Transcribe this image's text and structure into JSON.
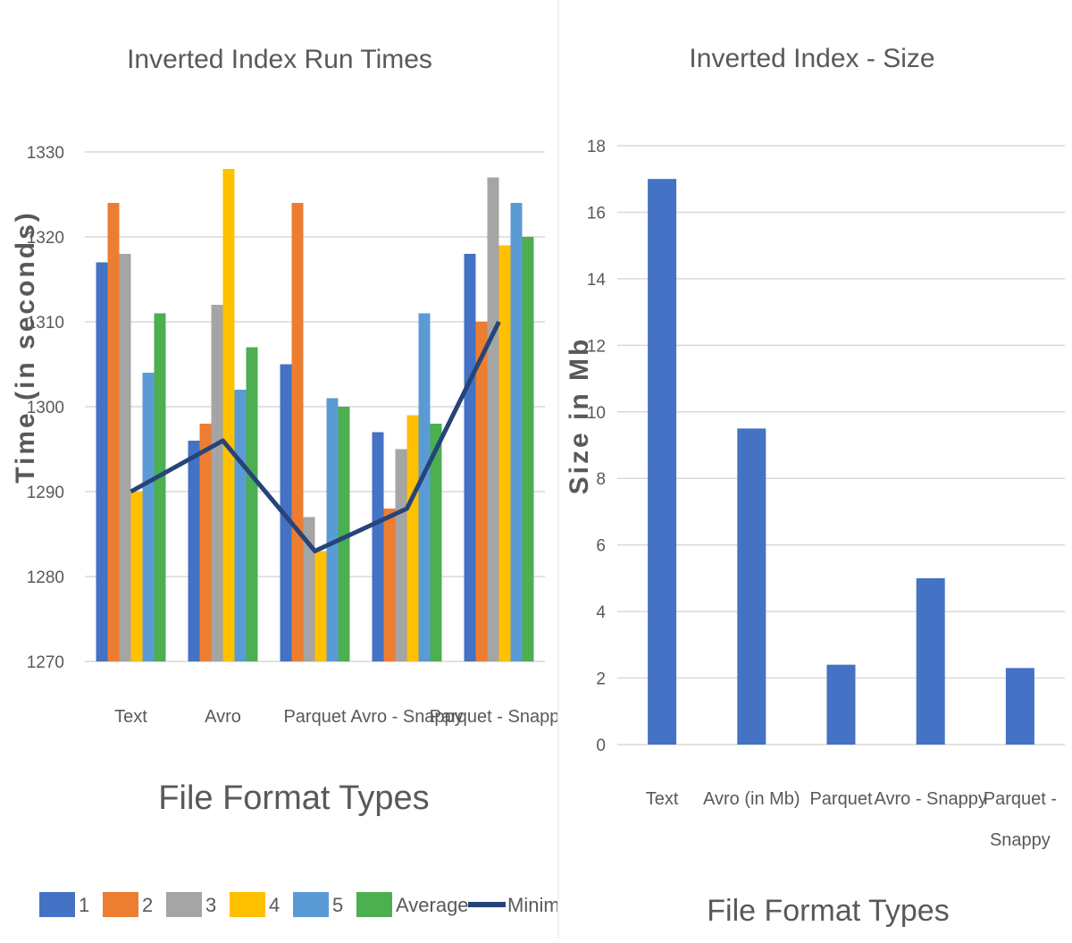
{
  "chart_data": [
    {
      "type": "bar",
      "title": "Inverted Index Run Times",
      "xlabel": "File Format Types",
      "ylabel": "Time (in seconds)",
      "ylim": [
        1270,
        1330
      ],
      "yticks": [
        "1270",
        "1280",
        "1290",
        "1300",
        "1310",
        "1320",
        "1330"
      ],
      "grid": true,
      "legend_position": "bottom",
      "categories": [
        "Text",
        "Avro",
        "Parquet",
        "Avro - Snappy",
        "Parquet - Snappy"
      ],
      "series": [
        {
          "name": "1",
          "type": "bar",
          "color": "#4472C4",
          "values": [
            1317,
            1296,
            1305,
            1297,
            1318
          ]
        },
        {
          "name": "2",
          "type": "bar",
          "color": "#ED7D31",
          "values": [
            1324,
            1298,
            1324,
            1288,
            1310
          ]
        },
        {
          "name": "3",
          "type": "bar",
          "color": "#A5A5A5",
          "values": [
            1318,
            1312,
            1287,
            1295,
            1327
          ]
        },
        {
          "name": "4",
          "type": "bar",
          "color": "#FFC000",
          "values": [
            1290,
            1328,
            1283,
            1299,
            1319
          ]
        },
        {
          "name": "5",
          "type": "bar",
          "color": "#5B9BD5",
          "values": [
            1304,
            1302,
            1301,
            1311,
            1324
          ]
        },
        {
          "name": "Average",
          "type": "bar",
          "color": "#4CAF50",
          "values": [
            1311,
            1307,
            1300,
            1298,
            1320
          ]
        },
        {
          "name": "Minimum",
          "type": "line",
          "color": "#264478",
          "values": [
            1290,
            1296,
            1283,
            1288,
            1310
          ]
        }
      ]
    },
    {
      "type": "bar",
      "title": "Inverted Index - Size",
      "xlabel": "File Format Types",
      "ylabel": "Size in Mb",
      "ylim": [
        0,
        18
      ],
      "yticks": [
        "0",
        "2",
        "4",
        "6",
        "8",
        "10",
        "12",
        "14",
        "16",
        "18"
      ],
      "grid": true,
      "color": "#4472C4",
      "categories": [
        "Text",
        "Avro (in Mb)",
        "Parquet",
        "Avro - Snappy",
        "Parquet - Snappy"
      ],
      "values": [
        17,
        9.5,
        2.4,
        5,
        2.3
      ]
    }
  ]
}
